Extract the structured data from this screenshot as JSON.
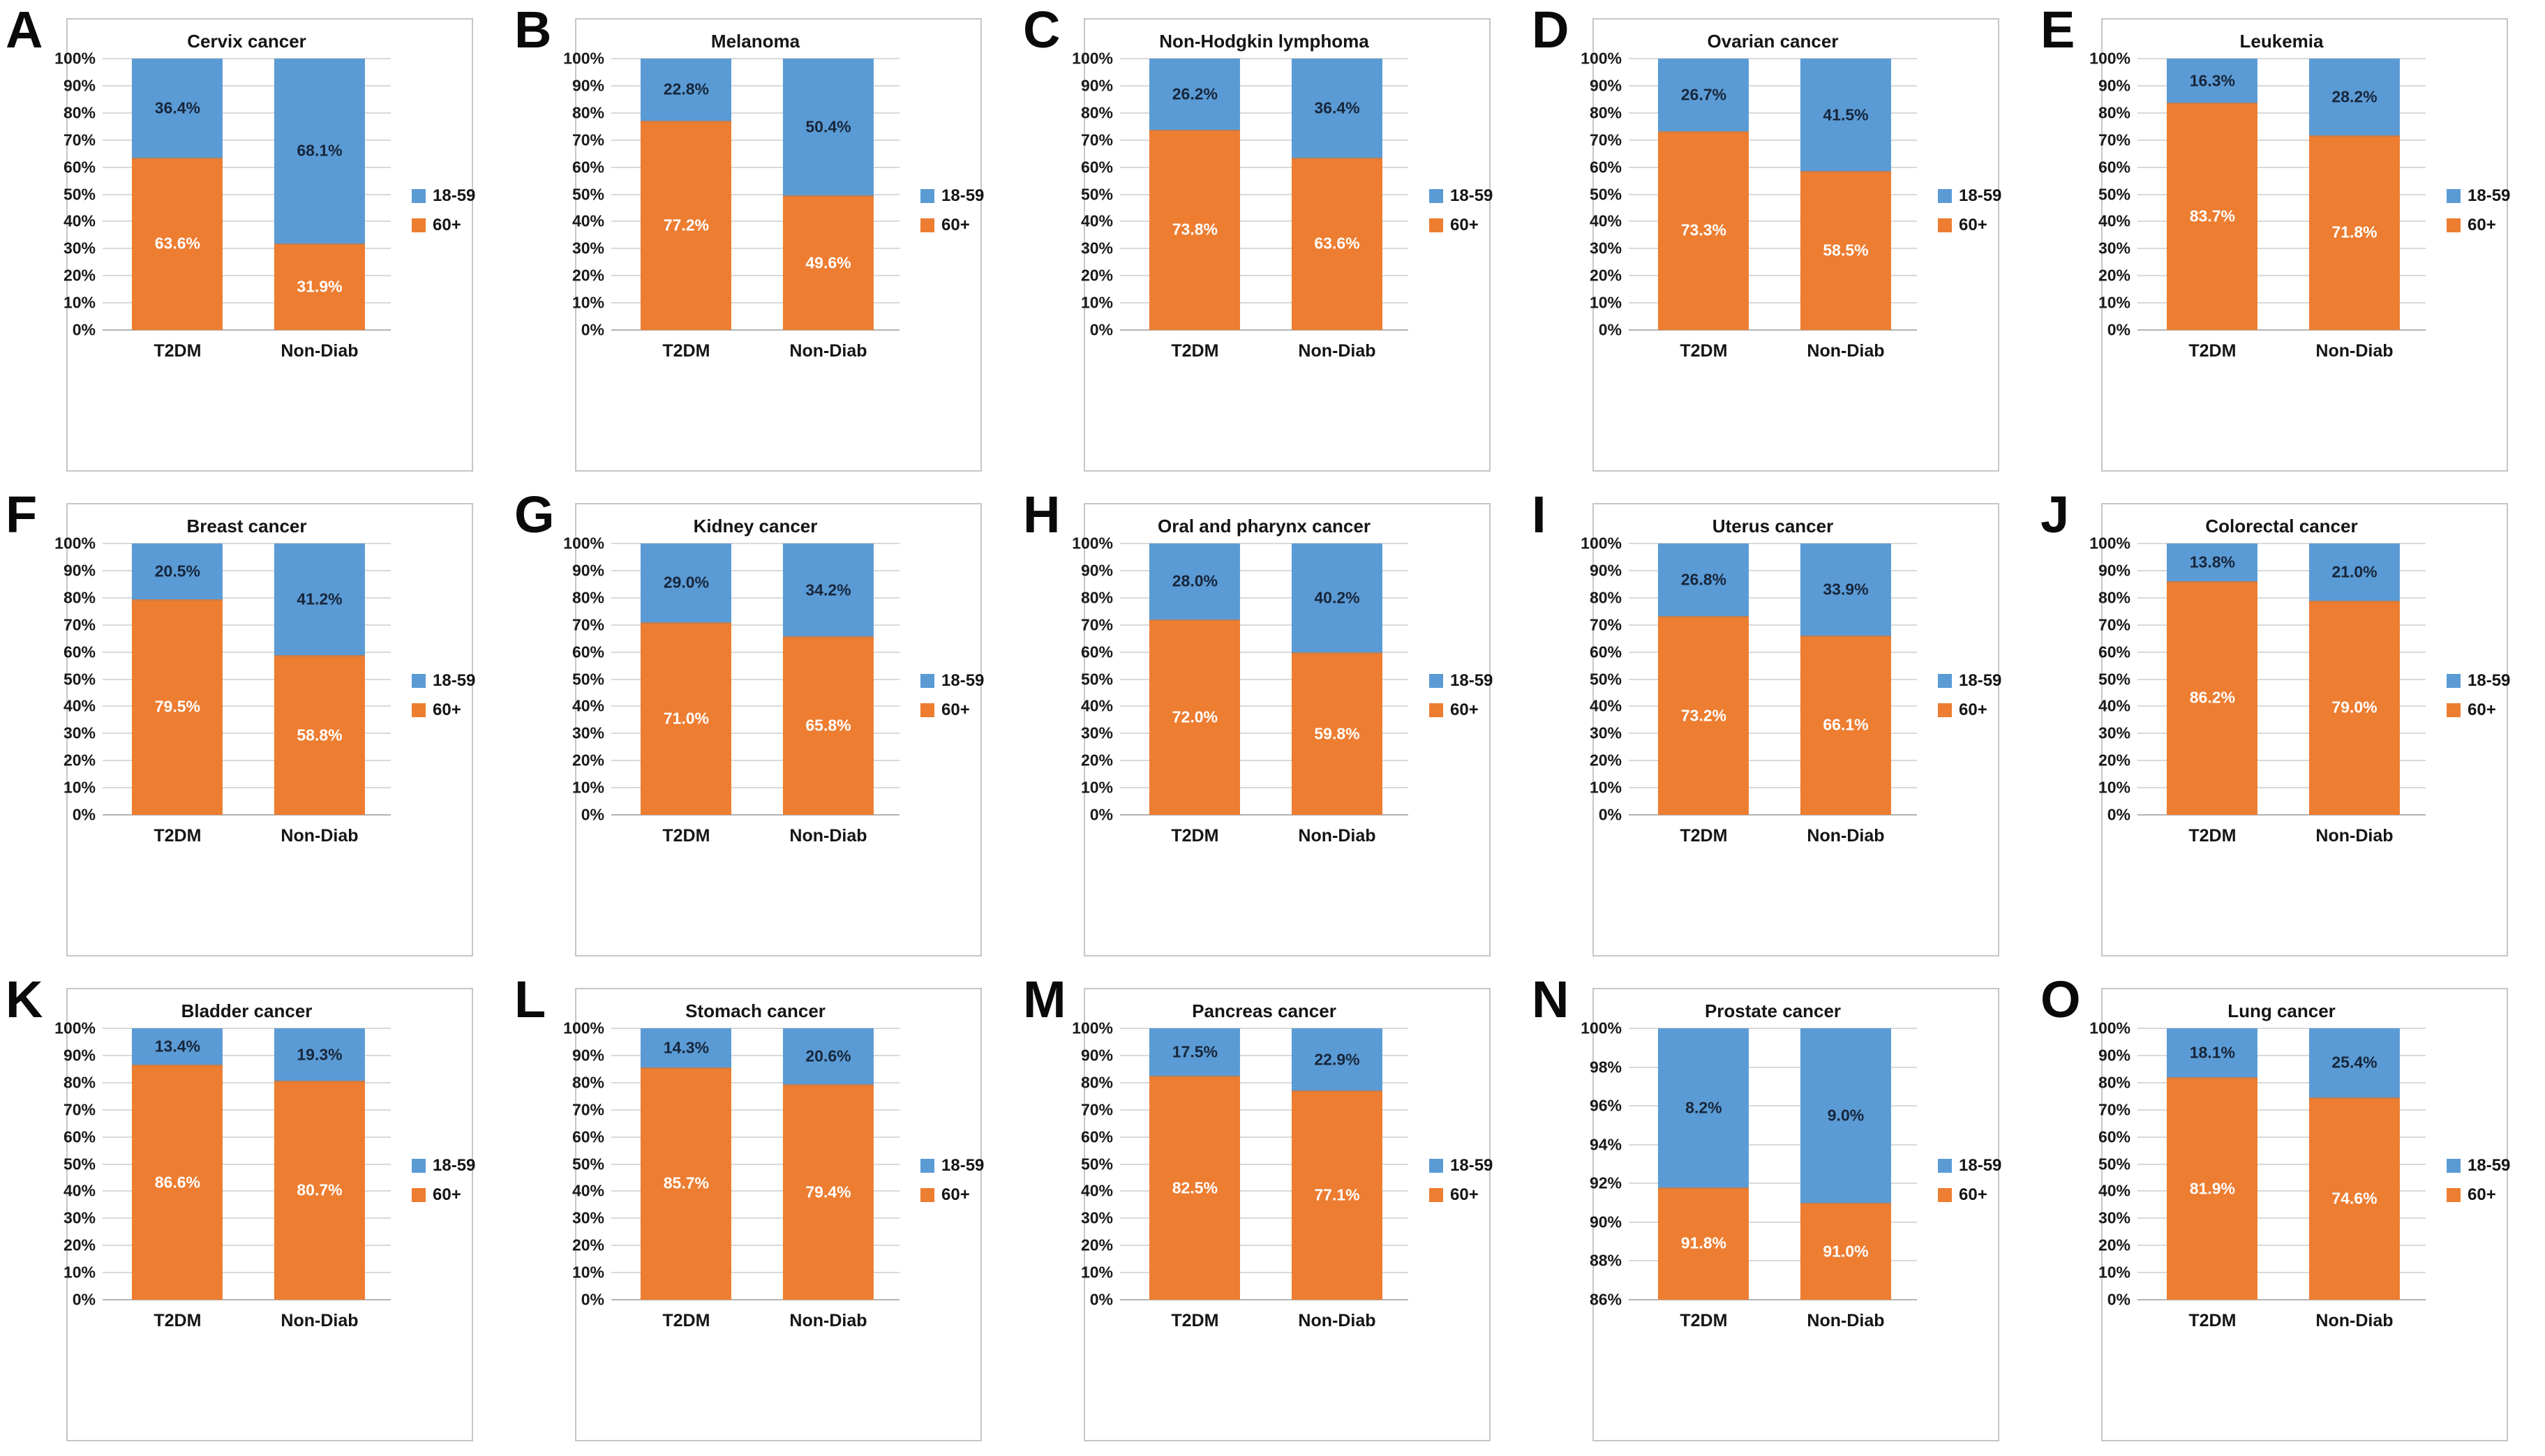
{
  "figure": {
    "background": "#ffffff",
    "categories": [
      "T2DM",
      "Non-Diab"
    ],
    "legend_labels": [
      "18-59",
      "60+"
    ],
    "colors": {
      "blue_series": "#5B9BD5",
      "orange_series": "#ED7D31",
      "gridline": "#d9d9d9",
      "box_border": "#c6c6c6",
      "blue_label_text": "#17263b",
      "orange_label_text": "#ffffff"
    }
  },
  "chart_data": [
    {
      "type": "bar",
      "stacked": true,
      "panel": "A",
      "title": "Cervix cancer",
      "categories": [
        "T2DM",
        "Non-Diab"
      ],
      "ylim": [
        0,
        100
      ],
      "y_tick_labels": [
        "0%",
        "10%",
        "20%",
        "30%",
        "40%",
        "50%",
        "60%",
        "70%",
        "80%",
        "90%",
        "100%"
      ],
      "series": [
        {
          "name": "18-59",
          "color": "#5B9BD5",
          "values": [
            36.4,
            68.1
          ],
          "labels": [
            "36.4%",
            "68.1%"
          ]
        },
        {
          "name": "60+",
          "color": "#ED7D31",
          "values": [
            63.6,
            31.9
          ],
          "labels": [
            "63.6%",
            "31.9%"
          ]
        }
      ]
    },
    {
      "type": "bar",
      "stacked": true,
      "panel": "B",
      "title": "Melanoma",
      "categories": [
        "T2DM",
        "Non-Diab"
      ],
      "ylim": [
        0,
        100
      ],
      "y_tick_labels": [
        "0%",
        "10%",
        "20%",
        "30%",
        "40%",
        "50%",
        "60%",
        "70%",
        "80%",
        "90%",
        "100%"
      ],
      "series": [
        {
          "name": "18-59",
          "color": "#5B9BD5",
          "values": [
            22.8,
            50.4
          ],
          "labels": [
            "22.8%",
            "50.4%"
          ]
        },
        {
          "name": "60+",
          "color": "#ED7D31",
          "values": [
            77.2,
            49.6
          ],
          "labels": [
            "77.2%",
            "49.6%"
          ]
        }
      ]
    },
    {
      "type": "bar",
      "stacked": true,
      "panel": "C",
      "title": "Non-Hodgkin lymphoma",
      "categories": [
        "T2DM",
        "Non-Diab"
      ],
      "ylim": [
        0,
        100
      ],
      "y_tick_labels": [
        "0%",
        "10%",
        "20%",
        "30%",
        "40%",
        "50%",
        "60%",
        "70%",
        "80%",
        "90%",
        "100%"
      ],
      "series": [
        {
          "name": "18-59",
          "color": "#5B9BD5",
          "values": [
            26.2,
            36.4
          ],
          "labels": [
            "26.2%",
            "36.4%"
          ]
        },
        {
          "name": "60+",
          "color": "#ED7D31",
          "values": [
            73.8,
            63.6
          ],
          "labels": [
            "73.8%",
            "63.6%"
          ]
        }
      ]
    },
    {
      "type": "bar",
      "stacked": true,
      "panel": "D",
      "title": "Ovarian cancer",
      "categories": [
        "T2DM",
        "Non-Diab"
      ],
      "ylim": [
        0,
        100
      ],
      "y_tick_labels": [
        "0%",
        "10%",
        "20%",
        "30%",
        "40%",
        "50%",
        "60%",
        "70%",
        "80%",
        "90%",
        "100%"
      ],
      "series": [
        {
          "name": "18-59",
          "color": "#5B9BD5",
          "values": [
            26.7,
            41.5
          ],
          "labels": [
            "26.7%",
            "41.5%"
          ]
        },
        {
          "name": "60+",
          "color": "#ED7D31",
          "values": [
            73.3,
            58.5
          ],
          "labels": [
            "73.3%",
            "58.5%"
          ]
        }
      ]
    },
    {
      "type": "bar",
      "stacked": true,
      "panel": "E",
      "title": "Leukemia",
      "categories": [
        "T2DM",
        "Non-Diab"
      ],
      "ylim": [
        0,
        100
      ],
      "y_tick_labels": [
        "0%",
        "10%",
        "20%",
        "30%",
        "40%",
        "50%",
        "60%",
        "70%",
        "80%",
        "90%",
        "100%"
      ],
      "series": [
        {
          "name": "18-59",
          "color": "#5B9BD5",
          "values": [
            16.3,
            28.2
          ],
          "labels": [
            "16.3%",
            "28.2%"
          ]
        },
        {
          "name": "60+",
          "color": "#ED7D31",
          "values": [
            83.7,
            71.8
          ],
          "labels": [
            "83.7%",
            "71.8%"
          ]
        }
      ]
    },
    {
      "type": "bar",
      "stacked": true,
      "panel": "F",
      "title": "Breast cancer",
      "categories": [
        "T2DM",
        "Non-Diab"
      ],
      "ylim": [
        0,
        100
      ],
      "y_tick_labels": [
        "0%",
        "10%",
        "20%",
        "30%",
        "40%",
        "50%",
        "60%",
        "70%",
        "80%",
        "90%",
        "100%"
      ],
      "series": [
        {
          "name": "18-59",
          "color": "#5B9BD5",
          "values": [
            20.5,
            41.2
          ],
          "labels": [
            "20.5%",
            "41.2%"
          ]
        },
        {
          "name": "60+",
          "color": "#ED7D31",
          "values": [
            79.5,
            58.8
          ],
          "labels": [
            "79.5%",
            "58.8%"
          ]
        }
      ]
    },
    {
      "type": "bar",
      "stacked": true,
      "panel": "G",
      "title": "Kidney cancer",
      "categories": [
        "T2DM",
        "Non-Diab"
      ],
      "ylim": [
        0,
        100
      ],
      "y_tick_labels": [
        "0%",
        "10%",
        "20%",
        "30%",
        "40%",
        "50%",
        "60%",
        "70%",
        "80%",
        "90%",
        "100%"
      ],
      "series": [
        {
          "name": "18-59",
          "color": "#5B9BD5",
          "values": [
            29.0,
            34.2
          ],
          "labels": [
            "29.0%",
            "34.2%"
          ]
        },
        {
          "name": "60+",
          "color": "#ED7D31",
          "values": [
            71.0,
            65.8
          ],
          "labels": [
            "71.0%",
            "65.8%"
          ]
        }
      ]
    },
    {
      "type": "bar",
      "stacked": true,
      "panel": "H",
      "title": "Oral and pharynx cancer",
      "categories": [
        "T2DM",
        "Non-Diab"
      ],
      "ylim": [
        0,
        100
      ],
      "y_tick_labels": [
        "0%",
        "10%",
        "20%",
        "30%",
        "40%",
        "50%",
        "60%",
        "70%",
        "80%",
        "90%",
        "100%"
      ],
      "series": [
        {
          "name": "18-59",
          "color": "#5B9BD5",
          "values": [
            28.0,
            40.2
          ],
          "labels": [
            "28.0%",
            "40.2%"
          ]
        },
        {
          "name": "60+",
          "color": "#ED7D31",
          "values": [
            72.0,
            59.8
          ],
          "labels": [
            "72.0%",
            "59.8%"
          ]
        }
      ]
    },
    {
      "type": "bar",
      "stacked": true,
      "panel": "I",
      "title": "Uterus cancer",
      "categories": [
        "T2DM",
        "Non-Diab"
      ],
      "ylim": [
        0,
        100
      ],
      "y_tick_labels": [
        "0%",
        "10%",
        "20%",
        "30%",
        "40%",
        "50%",
        "60%",
        "70%",
        "80%",
        "90%",
        "100%"
      ],
      "series": [
        {
          "name": "18-59",
          "color": "#5B9BD5",
          "values": [
            26.8,
            33.9
          ],
          "labels": [
            "26.8%",
            "33.9%"
          ]
        },
        {
          "name": "60+",
          "color": "#ED7D31",
          "values": [
            73.2,
            66.1
          ],
          "labels": [
            "73.2%",
            "66.1%"
          ]
        }
      ]
    },
    {
      "type": "bar",
      "stacked": true,
      "panel": "J",
      "title": "Colorectal cancer",
      "categories": [
        "T2DM",
        "Non-Diab"
      ],
      "ylim": [
        0,
        100
      ],
      "y_tick_labels": [
        "0%",
        "10%",
        "20%",
        "30%",
        "40%",
        "50%",
        "60%",
        "70%",
        "80%",
        "90%",
        "100%"
      ],
      "series": [
        {
          "name": "18-59",
          "color": "#5B9BD5",
          "values": [
            13.8,
            21.0
          ],
          "labels": [
            "13.8%",
            "21.0%"
          ]
        },
        {
          "name": "60+",
          "color": "#ED7D31",
          "values": [
            86.2,
            79.0
          ],
          "labels": [
            "86.2%",
            "79.0%"
          ]
        }
      ]
    },
    {
      "type": "bar",
      "stacked": true,
      "panel": "K",
      "title": "Bladder cancer",
      "categories": [
        "T2DM",
        "Non-Diab"
      ],
      "ylim": [
        0,
        100
      ],
      "y_tick_labels": [
        "0%",
        "10%",
        "20%",
        "30%",
        "40%",
        "50%",
        "60%",
        "70%",
        "80%",
        "90%",
        "100%"
      ],
      "series": [
        {
          "name": "18-59",
          "color": "#5B9BD5",
          "values": [
            13.4,
            19.3
          ],
          "labels": [
            "13.4%",
            "19.3%"
          ]
        },
        {
          "name": "60+",
          "color": "#ED7D31",
          "values": [
            86.6,
            80.7
          ],
          "labels": [
            "86.6%",
            "80.7%"
          ]
        }
      ]
    },
    {
      "type": "bar",
      "stacked": true,
      "panel": "L",
      "title": "Stomach cancer",
      "categories": [
        "T2DM",
        "Non-Diab"
      ],
      "ylim": [
        0,
        100
      ],
      "y_tick_labels": [
        "0%",
        "10%",
        "20%",
        "30%",
        "40%",
        "50%",
        "60%",
        "70%",
        "80%",
        "90%",
        "100%"
      ],
      "series": [
        {
          "name": "18-59",
          "color": "#5B9BD5",
          "values": [
            14.3,
            20.6
          ],
          "labels": [
            "14.3%",
            "20.6%"
          ]
        },
        {
          "name": "60+",
          "color": "#ED7D31",
          "values": [
            85.7,
            79.4
          ],
          "labels": [
            "85.7%",
            "79.4%"
          ]
        }
      ]
    },
    {
      "type": "bar",
      "stacked": true,
      "panel": "M",
      "title": "Pancreas cancer",
      "categories": [
        "T2DM",
        "Non-Diab"
      ],
      "ylim": [
        0,
        100
      ],
      "y_tick_labels": [
        "0%",
        "10%",
        "20%",
        "30%",
        "40%",
        "50%",
        "60%",
        "70%",
        "80%",
        "90%",
        "100%"
      ],
      "series": [
        {
          "name": "18-59",
          "color": "#5B9BD5",
          "values": [
            17.5,
            22.9
          ],
          "labels": [
            "17.5%",
            "22.9%"
          ]
        },
        {
          "name": "60+",
          "color": "#ED7D31",
          "values": [
            82.5,
            77.1
          ],
          "labels": [
            "82.5%",
            "77.1%"
          ]
        }
      ]
    },
    {
      "type": "bar",
      "stacked": true,
      "panel": "N",
      "title": "Prostate cancer",
      "categories": [
        "T2DM",
        "Non-Diab"
      ],
      "ylim": [
        86,
        100
      ],
      "y_tick_labels": [
        "86%",
        "88%",
        "90%",
        "92%",
        "94%",
        "96%",
        "98%",
        "100%"
      ],
      "series": [
        {
          "name": "18-59",
          "color": "#5B9BD5",
          "values": [
            8.2,
            9.0
          ],
          "labels": [
            "8.2%",
            "9.0%"
          ]
        },
        {
          "name": "60+",
          "color": "#ED7D31",
          "values": [
            91.8,
            91.0
          ],
          "labels": [
            "91.8%",
            "91.0%"
          ]
        }
      ]
    },
    {
      "type": "bar",
      "stacked": true,
      "panel": "O",
      "title": "Lung cancer",
      "categories": [
        "T2DM",
        "Non-Diab"
      ],
      "ylim": [
        0,
        100
      ],
      "y_tick_labels": [
        "0%",
        "10%",
        "20%",
        "30%",
        "40%",
        "50%",
        "60%",
        "70%",
        "80%",
        "90%",
        "100%"
      ],
      "series": [
        {
          "name": "18-59",
          "color": "#5B9BD5",
          "values": [
            18.1,
            25.4
          ],
          "labels": [
            "18.1%",
            "25.4%"
          ]
        },
        {
          "name": "60+",
          "color": "#ED7D31",
          "values": [
            81.9,
            74.6
          ],
          "labels": [
            "81.9%",
            "74.6%"
          ]
        }
      ]
    }
  ]
}
